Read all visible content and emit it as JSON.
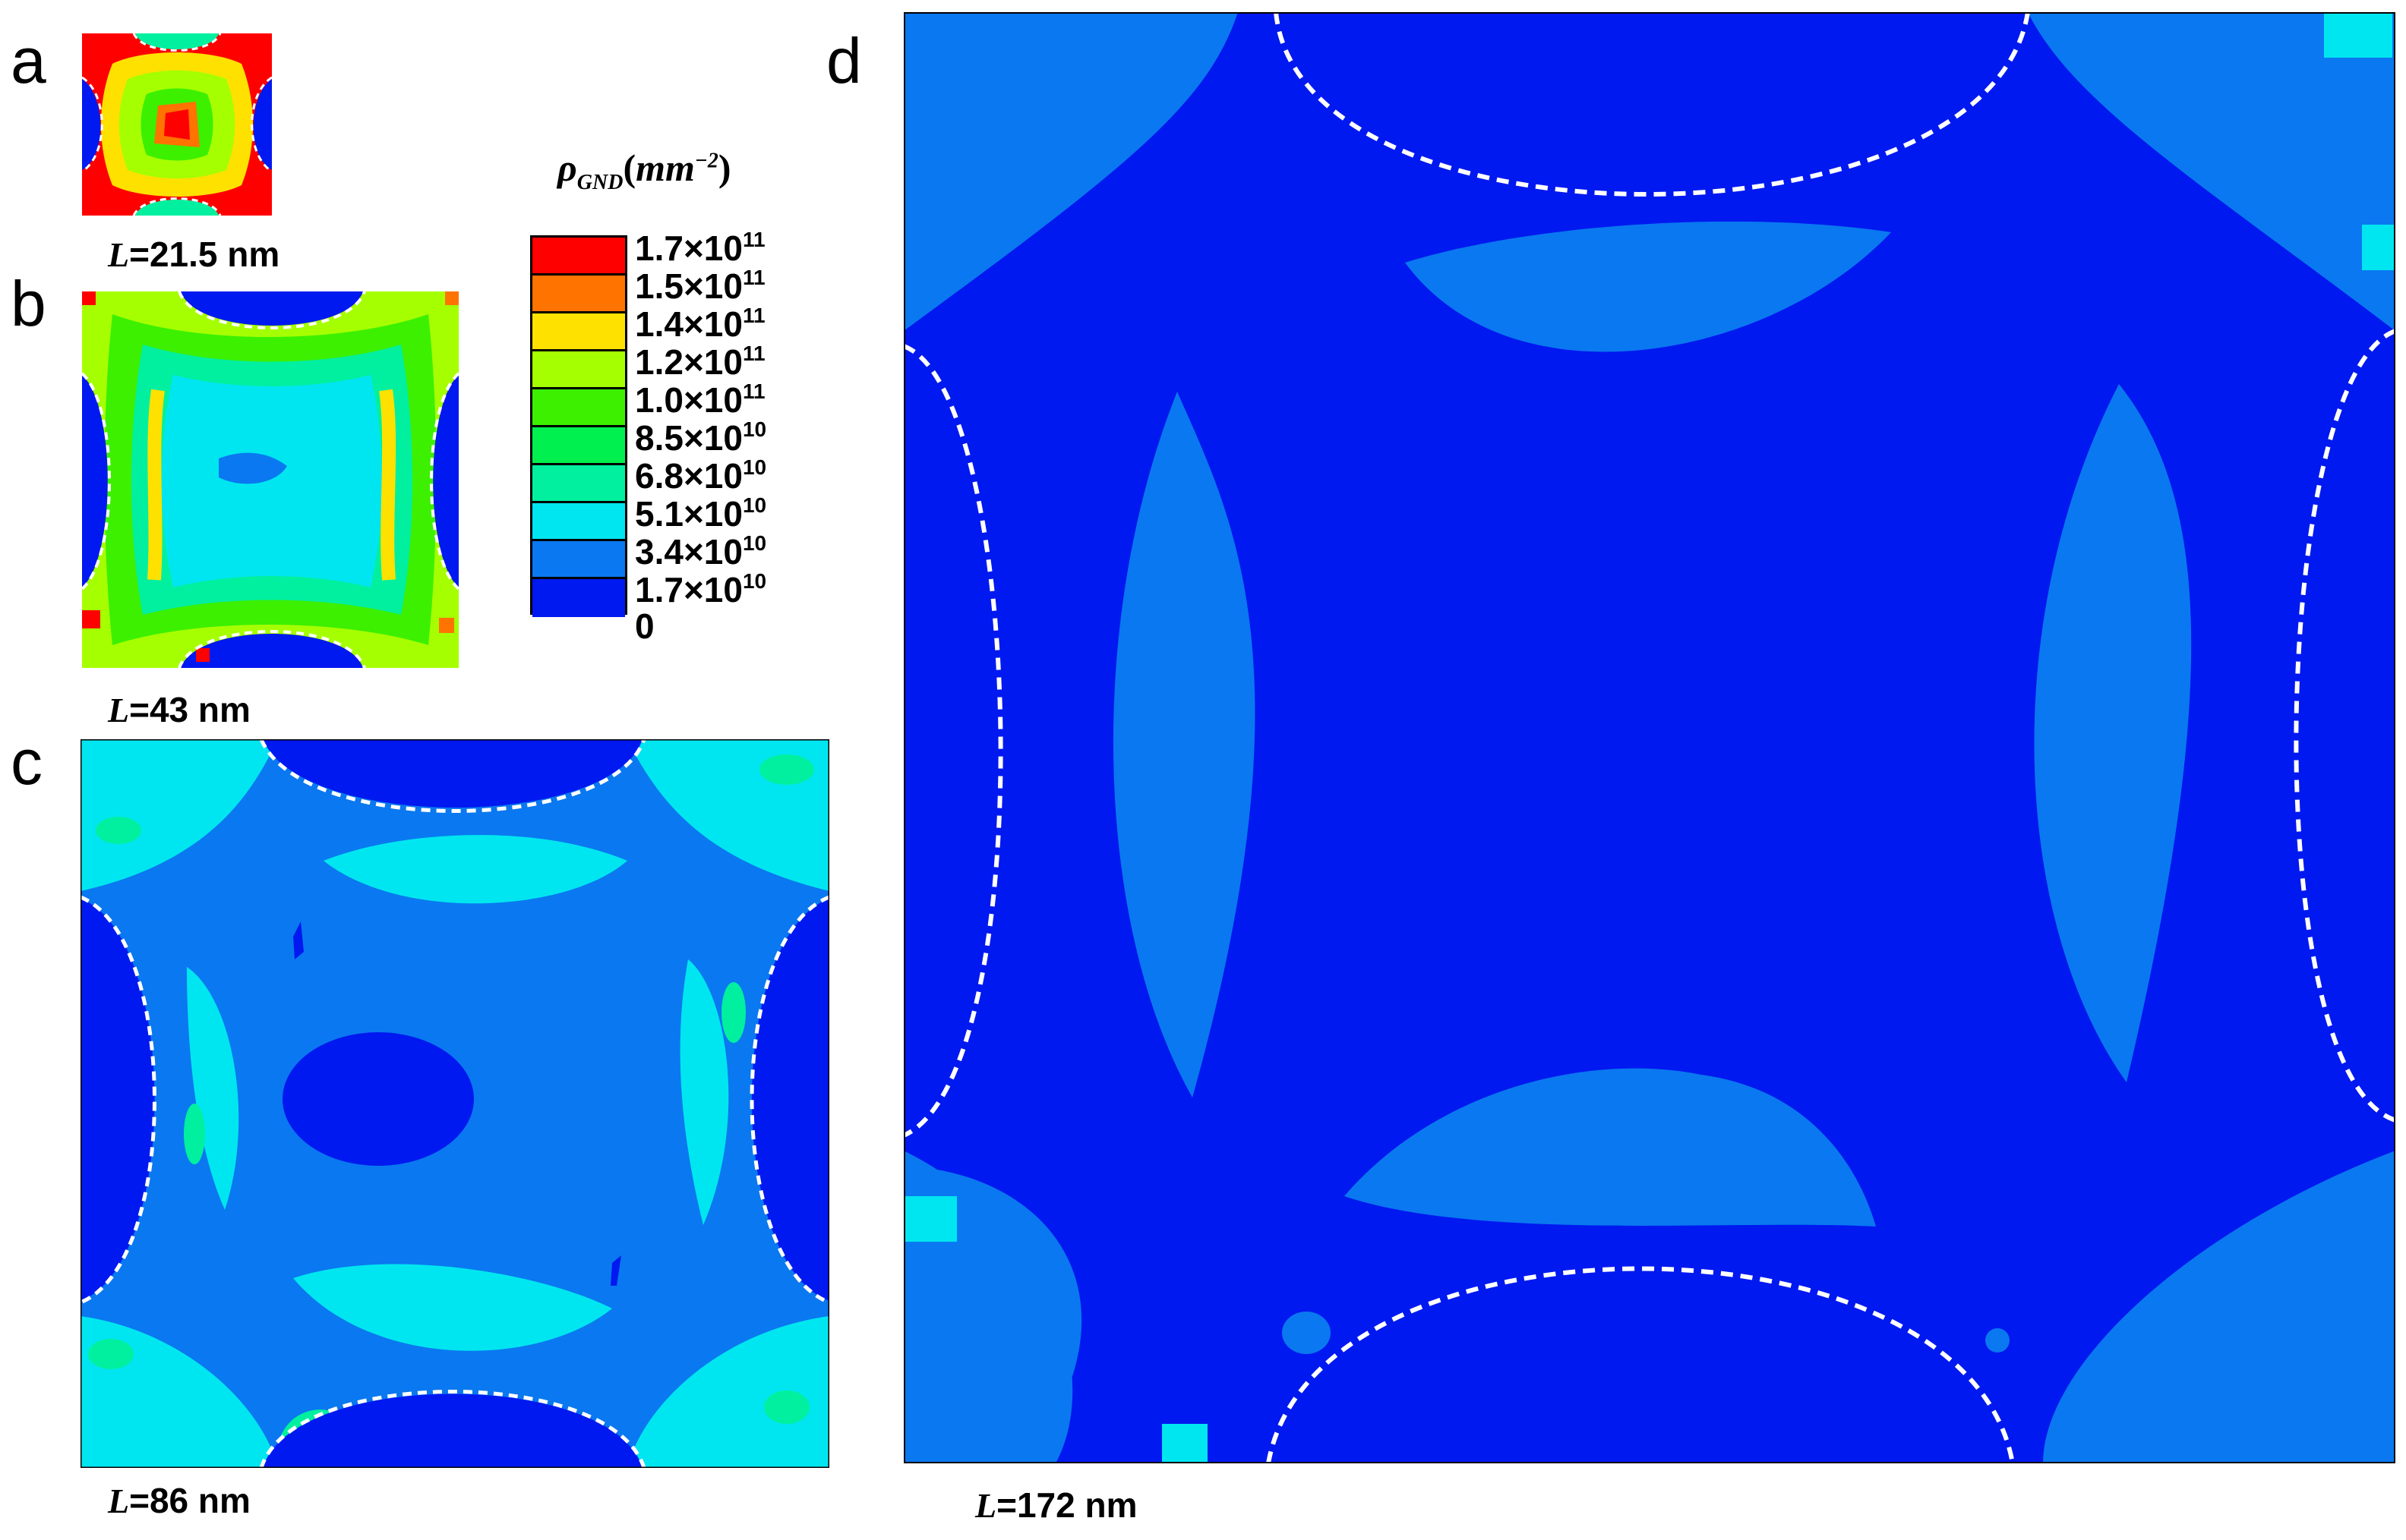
{
  "panels": {
    "a": {
      "letter": "a",
      "caption_var": "L",
      "caption_value": "=21.5 nm"
    },
    "b": {
      "letter": "b",
      "caption_var": "L",
      "caption_value": "=43 nm"
    },
    "c": {
      "letter": "c",
      "caption_var": "L",
      "caption_value": "=86 nm"
    },
    "d": {
      "letter": "d",
      "caption_var": "L",
      "caption_value": "=172 nm"
    }
  },
  "legend": {
    "title_symbol": "ρ",
    "title_subscript": "GND",
    "title_unit": "mm",
    "title_exponent": "−2",
    "levels": [
      {
        "mantissa": "1.7×10",
        "exponent": "11",
        "color": "#ff0000"
      },
      {
        "mantissa": "1.5×10",
        "exponent": "11",
        "color": "#ff7300"
      },
      {
        "mantissa": "1.4×10",
        "exponent": "11",
        "color": "#ffe100"
      },
      {
        "mantissa": "1.2×10",
        "exponent": "11",
        "color": "#a5ff00"
      },
      {
        "mantissa": "1.0×10",
        "exponent": "11",
        "color": "#3cf000"
      },
      {
        "mantissa": "8.5×10",
        "exponent": "10",
        "color": "#00f050"
      },
      {
        "mantissa": "6.8×10",
        "exponent": "10",
        "color": "#00f0a0"
      },
      {
        "mantissa": "5.1×10",
        "exponent": "10",
        "color": "#00e6f0"
      },
      {
        "mantissa": "3.4×10",
        "exponent": "10",
        "color": "#0a78f0"
      },
      {
        "mantissa": "1.7×10",
        "exponent": "10",
        "color": "#0019f0"
      },
      {
        "mantissa": "0",
        "exponent": "",
        "color": ""
      }
    ]
  },
  "colors": {
    "dark_blue": "#0019f0",
    "mid_blue": "#0a78f0",
    "cyan": "#00e6f0",
    "teal": "#00f0a0",
    "green": "#3cf000",
    "yellow": "#ffe100",
    "red": "#ff0000",
    "orange": "#ff7300"
  }
}
